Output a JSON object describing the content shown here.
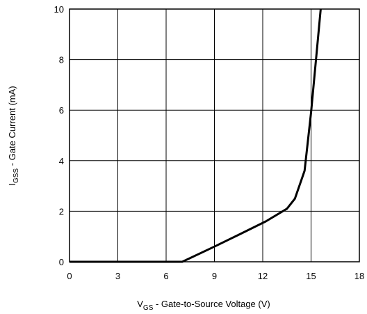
{
  "chart_data": {
    "type": "line",
    "xlabel": {
      "prefix": "V",
      "sub": "GS",
      "text": " - Gate-to-Source Voltage (V)"
    },
    "ylabel": {
      "prefix": "I",
      "sub": "GSS",
      "text": " - Gate Current (mA)"
    },
    "xlim": [
      0,
      18
    ],
    "ylim": [
      0,
      10
    ],
    "x_ticks": [
      0,
      3,
      6,
      9,
      12,
      15,
      18
    ],
    "y_ticks": [
      0,
      2,
      4,
      6,
      8,
      10
    ],
    "grid": true,
    "series": [
      {
        "color": "#000000",
        "points": [
          [
            0,
            0
          ],
          [
            6,
            0
          ],
          [
            7.0,
            0
          ],
          [
            9.0,
            0.6
          ],
          [
            10.6,
            1.1
          ],
          [
            12.2,
            1.6
          ],
          [
            13.5,
            2.1
          ],
          [
            14.0,
            2.5
          ],
          [
            14.6,
            3.6
          ],
          [
            15.0,
            5.9
          ],
          [
            15.6,
            10.0
          ]
        ]
      }
    ]
  }
}
